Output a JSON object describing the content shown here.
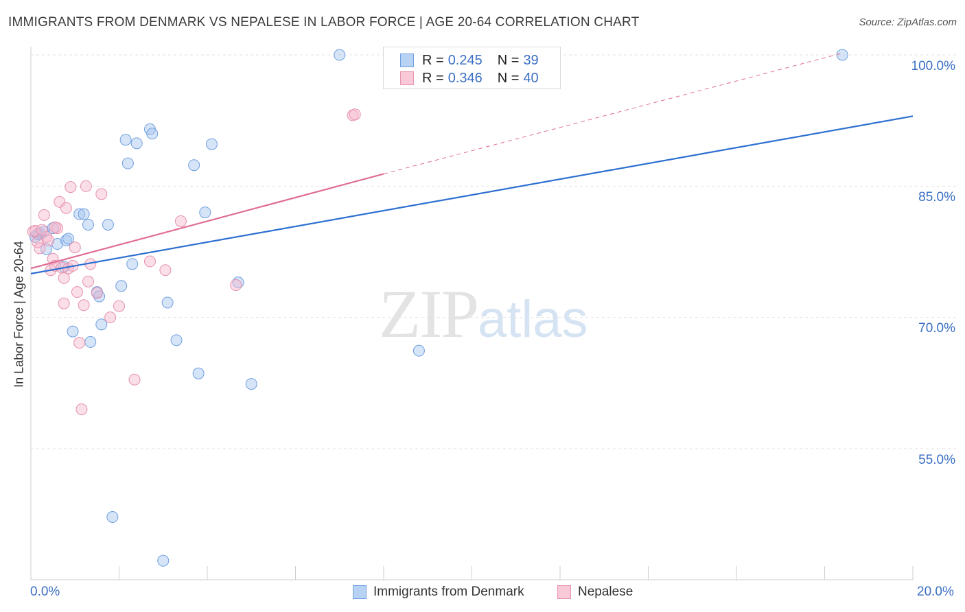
{
  "title": "IMMIGRANTS FROM DENMARK VS NEPALESE IN LABOR FORCE | AGE 20-64 CORRELATION CHART",
  "source": "Source: ZipAtlas.com",
  "watermark": {
    "zip": "ZIP",
    "atlas": "atlas"
  },
  "legend_top": [
    {
      "r_label": "R =",
      "r_value": "0.245",
      "n_label": "N =",
      "n_value": "39",
      "color": "#aac8f0",
      "border": "#6f9fe0"
    },
    {
      "r_label": "R =",
      "r_value": "0.346",
      "n_label": "N =",
      "n_value": "40",
      "color": "#f7bfd0",
      "border": "#e894b0"
    }
  ],
  "colors": {
    "blue_fill": "rgba(163,196,240,0.45)",
    "blue_stroke": "#6f9fe0",
    "blue_line": "#2c6fd1",
    "pink_fill": "rgba(246,184,204,0.45)",
    "pink_stroke": "#e590ae",
    "pink_line": "#e06c94",
    "grid": "#e2e2e2",
    "tick_text": "#3a6fc4"
  },
  "chart_data": {
    "type": "scatter",
    "title": "IMMIGRANTS FROM DENMARK VS NEPALESE IN LABOR FORCE | AGE 20-64 CORRELATION CHART",
    "xlabel": "",
    "ylabel": "In Labor Force | Age 20-64",
    "xlim": [
      0,
      20
    ],
    "ylim": [
      42,
      101.5
    ],
    "x_tick_labels": [
      "0.0%",
      "20.0%"
    ],
    "y_ticks": [
      55,
      70,
      85,
      100
    ],
    "y_tick_labels": [
      "55.0%",
      "70.0%",
      "85.0%",
      "100.0%"
    ],
    "series": [
      {
        "name": "Immigrants from Denmark",
        "points": [
          [
            0.1,
            79.2
          ],
          [
            0.2,
            79.6
          ],
          [
            0.3,
            79.8
          ],
          [
            0.35,
            77.8
          ],
          [
            0.5,
            80.2
          ],
          [
            0.6,
            78.4
          ],
          [
            0.75,
            75.8
          ],
          [
            0.8,
            78.8
          ],
          [
            0.85,
            79.0
          ],
          [
            1.1,
            81.8
          ],
          [
            1.2,
            81.8
          ],
          [
            1.3,
            80.6
          ],
          [
            0.95,
            68.4
          ],
          [
            1.35,
            67.2
          ],
          [
            1.5,
            72.9
          ],
          [
            1.55,
            72.4
          ],
          [
            1.6,
            69.2
          ],
          [
            1.75,
            80.6
          ],
          [
            2.05,
            73.6
          ],
          [
            2.15,
            90.3
          ],
          [
            2.2,
            87.6
          ],
          [
            2.3,
            76.1
          ],
          [
            2.4,
            89.9
          ],
          [
            2.7,
            91.5
          ],
          [
            2.75,
            91.0
          ],
          [
            3.1,
            71.7
          ],
          [
            3.3,
            67.4
          ],
          [
            3.7,
            87.4
          ],
          [
            3.8,
            63.6
          ],
          [
            3.95,
            82.0
          ],
          [
            4.1,
            89.8
          ],
          [
            4.7,
            74.0
          ],
          [
            5.0,
            62.4
          ],
          [
            7.0,
            100.0
          ],
          [
            8.8,
            66.2
          ],
          [
            18.4,
            100.0
          ],
          [
            1.85,
            47.2
          ],
          [
            3.0,
            42.2
          ],
          [
            0.15,
            79.5
          ]
        ]
      },
      {
        "name": "Nepalese",
        "points": [
          [
            0.05,
            79.8
          ],
          [
            0.15,
            78.6
          ],
          [
            0.2,
            77.9
          ],
          [
            0.3,
            81.7
          ],
          [
            0.35,
            79.2
          ],
          [
            0.4,
            78.8
          ],
          [
            0.45,
            75.4
          ],
          [
            0.5,
            76.7
          ],
          [
            0.55,
            75.9
          ],
          [
            0.6,
            80.2
          ],
          [
            0.65,
            83.2
          ],
          [
            0.7,
            75.7
          ],
          [
            0.75,
            71.6
          ],
          [
            0.75,
            74.5
          ],
          [
            0.8,
            82.5
          ],
          [
            0.85,
            75.6
          ],
          [
            0.9,
            84.9
          ],
          [
            0.95,
            75.9
          ],
          [
            1.0,
            78.0
          ],
          [
            1.05,
            72.9
          ],
          [
            1.1,
            67.1
          ],
          [
            1.15,
            59.5
          ],
          [
            1.2,
            71.4
          ],
          [
            1.25,
            85.0
          ],
          [
            1.3,
            74.1
          ],
          [
            1.35,
            76.1
          ],
          [
            1.5,
            72.8
          ],
          [
            1.6,
            84.1
          ],
          [
            1.8,
            70.0
          ],
          [
            2.0,
            71.3
          ],
          [
            2.35,
            62.9
          ],
          [
            2.7,
            76.4
          ],
          [
            3.05,
            75.4
          ],
          [
            3.4,
            81.0
          ],
          [
            4.65,
            73.7
          ],
          [
            7.3,
            93.1
          ],
          [
            7.35,
            93.2
          ],
          [
            0.1,
            79.9
          ],
          [
            0.25,
            80.0
          ],
          [
            0.55,
            80.3
          ]
        ]
      }
    ],
    "trendlines": [
      {
        "series": "Immigrants from Denmark",
        "x": [
          0,
          20
        ],
        "y": [
          75.0,
          93.0
        ],
        "style": "solid"
      },
      {
        "series": "Nepalese",
        "x": [
          0,
          8.0
        ],
        "y": [
          75.6,
          86.4
        ],
        "style": "solid"
      },
      {
        "series": "Nepalese",
        "x": [
          8.0,
          18.4
        ],
        "y": [
          86.4,
          100.2
        ],
        "style": "dashed"
      }
    ],
    "legend_position": "top-center"
  }
}
